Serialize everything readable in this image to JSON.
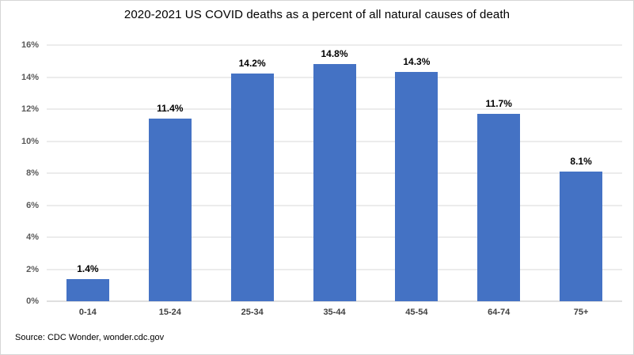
{
  "source": "Source: CDC  Wonder, wonder.cdc.gov",
  "colors": {
    "bar": "#4472c4",
    "gridline": "#d9d9d9",
    "axis_line": "#bfbfbf",
    "y_tick_label": "#595959",
    "x_tick_label": "#404040",
    "title": "#000000",
    "data_label": "#000000",
    "background": "#ffffff"
  },
  "chart_data": {
    "type": "bar",
    "title": "2020-2021 US COVID deaths as a percent of all natural causes of death",
    "categories": [
      "0-14",
      "15-24",
      "25-34",
      "35-44",
      "45-54",
      "64-74",
      "75+"
    ],
    "values": [
      1.4,
      11.4,
      14.2,
      14.8,
      14.3,
      11.7,
      8.1
    ],
    "data_labels": [
      "1.4%",
      "11.4%",
      "14.2%",
      "14.8%",
      "14.3%",
      "11.7%",
      "8.1%"
    ],
    "xlabel": "",
    "ylabel": "",
    "ylim": [
      0,
      16
    ],
    "ytick_interval": 2,
    "ytick_labels": [
      "0%",
      "2%",
      "4%",
      "6%",
      "8%",
      "10%",
      "12%",
      "14%",
      "16%"
    ],
    "grid": true,
    "legend": false
  }
}
